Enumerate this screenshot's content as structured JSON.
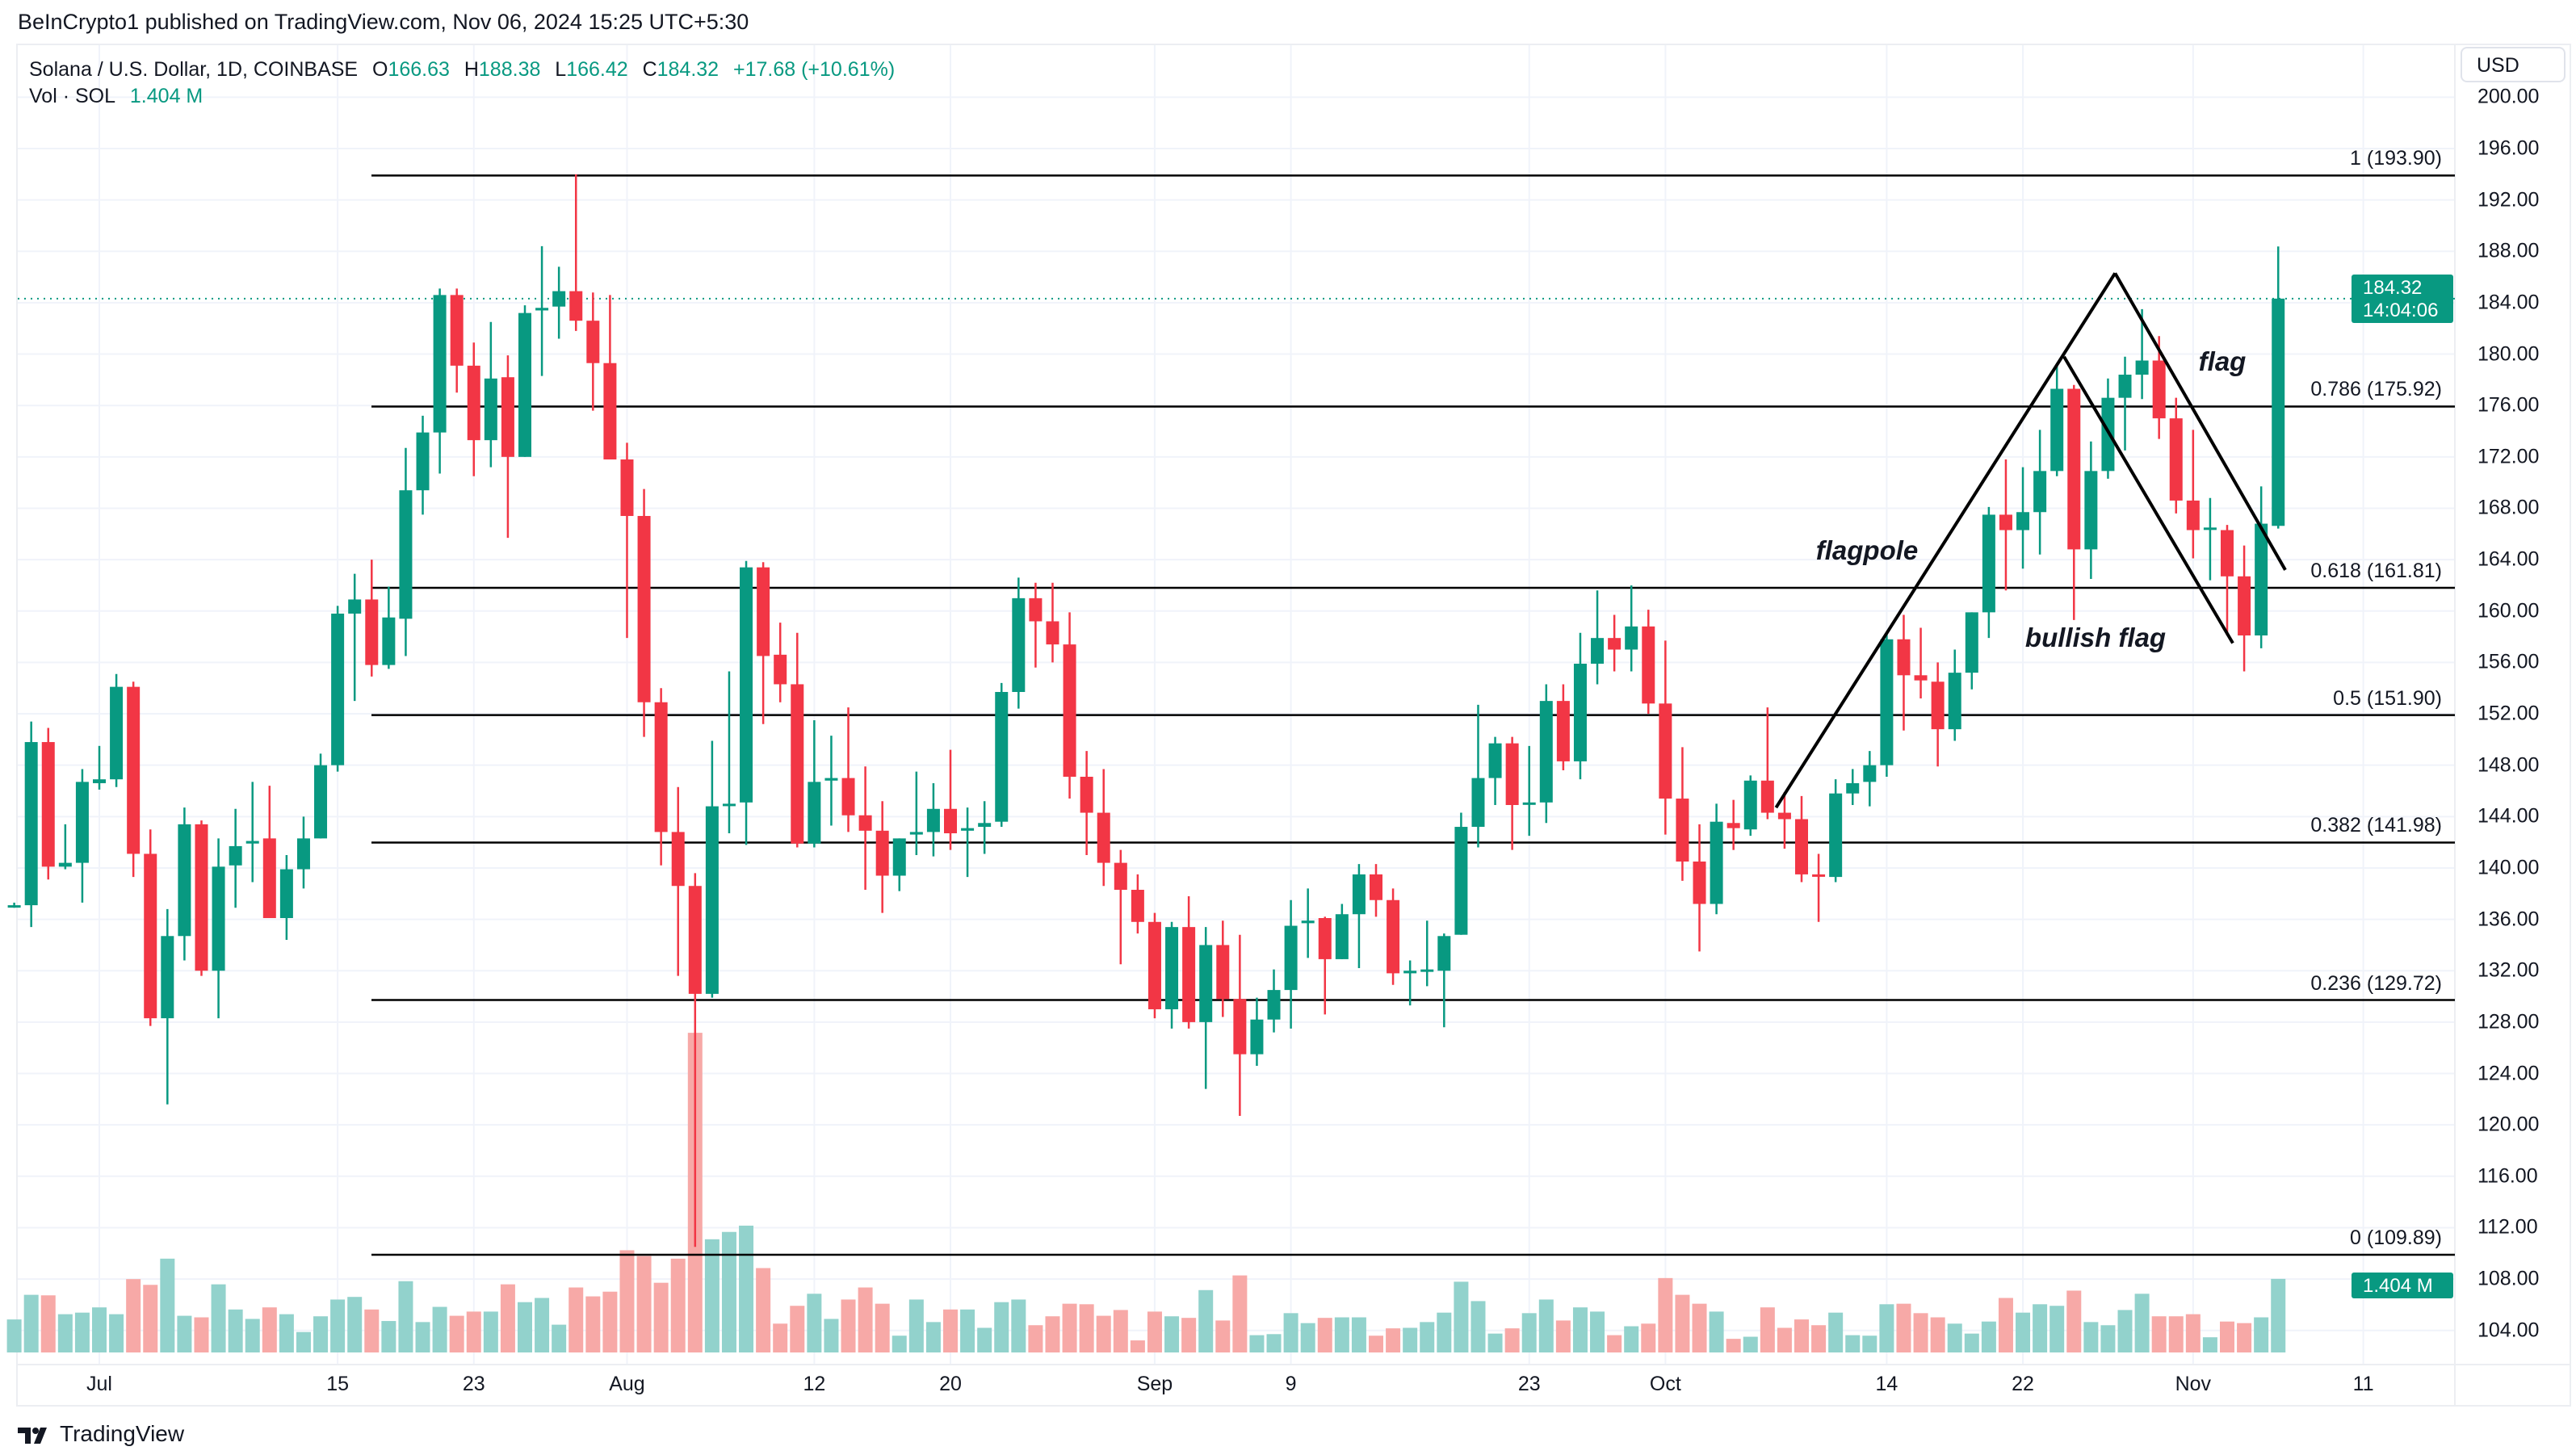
{
  "publish_line": "BeInCrypto1 published on TradingView.com, Nov 06, 2024 15:25 UTC+5:30",
  "legend": {
    "symbol": "Solana / U.S. Dollar, 1D, COINBASE",
    "o_label": "O",
    "o": "166.63",
    "h_label": "H",
    "h": "188.38",
    "l_label": "L",
    "l": "166.42",
    "c_label": "C",
    "c": "184.32",
    "change": "+17.68 (+10.61%)",
    "vol_label": "Vol · SOL",
    "vol": "1.404 M"
  },
  "currency": "USD",
  "price_label": {
    "price": "184.32",
    "countdown": "14:04:06"
  },
  "volume_label": "1.404 M",
  "brand": "TradingView",
  "colors": {
    "up": "#089981",
    "down": "#F23645",
    "vol_up": "#92D2CC",
    "vol_down": "#F7A9A7",
    "fib": "#000000"
  },
  "chart_data": {
    "type": "candlestick",
    "title": "Solana / U.S. Dollar, 1D, COINBASE",
    "ylim": [
      102,
      200
    ],
    "grid": true,
    "y_ticks": [
      "200.00",
      "196.00",
      "192.00",
      "188.00",
      "184.00",
      "180.00",
      "176.00",
      "172.00",
      "168.00",
      "164.00",
      "160.00",
      "156.00",
      "152.00",
      "148.00",
      "144.00",
      "140.00",
      "136.00",
      "132.00",
      "128.00",
      "124.00",
      "120.00",
      "116.00",
      "112.00",
      "108.00",
      "104.00"
    ],
    "x_ticks": [
      {
        "label": "Jul",
        "date": "2024-07-01"
      },
      {
        "label": "15",
        "date": "2024-07-15"
      },
      {
        "label": "23",
        "date": "2024-07-23"
      },
      {
        "label": "Aug",
        "date": "2024-08-01"
      },
      {
        "label": "12",
        "date": "2024-08-12"
      },
      {
        "label": "20",
        "date": "2024-08-20"
      },
      {
        "label": "Sep",
        "date": "2024-09-01"
      },
      {
        "label": "9",
        "date": "2024-09-09"
      },
      {
        "label": "23",
        "date": "2024-09-23"
      },
      {
        "label": "Oct",
        "date": "2024-10-01"
      },
      {
        "label": "14",
        "date": "2024-10-14"
      },
      {
        "label": "22",
        "date": "2024-10-22"
      },
      {
        "label": "Nov",
        "date": "2024-11-01"
      },
      {
        "label": "11",
        "date": "2024-11-11"
      }
    ],
    "fib_levels": [
      {
        "label": "1 (193.90)",
        "price": 193.9
      },
      {
        "label": "0.786 (175.92)",
        "price": 175.92
      },
      {
        "label": "0.618 (161.81)",
        "price": 161.81
      },
      {
        "label": "0.5 (151.90)",
        "price": 151.9
      },
      {
        "label": "0.382 (141.98)",
        "price": 141.98
      },
      {
        "label": "0.236 (129.72)",
        "price": 129.72
      },
      {
        "label": "0 (109.89)",
        "price": 109.89
      }
    ],
    "last_price": 184.32,
    "annotations": {
      "labels": [
        "flagpole",
        "bullish flag",
        "flag"
      ],
      "lines": [
        {
          "from": [
            "2024-10-07T12:00",
            144.7
          ],
          "to": [
            "2024-10-27T10:00",
            186.3
          ]
        },
        {
          "from": [
            "2024-10-24T10:00",
            179.8
          ],
          "to": [
            "2024-11-03T08:00",
            157.5
          ]
        },
        {
          "from": [
            "2024-10-27T10:00",
            186.3
          ],
          "to": [
            "2024-11-06T10:00",
            163.2
          ]
        }
      ]
    },
    "columns": [
      "date",
      "open",
      "high",
      "low",
      "close",
      "volume_M"
    ],
    "candles": [
      [
        "2024-06-26",
        137.0,
        137.3,
        136.9,
        137.1,
        0.63
      ],
      [
        "2024-06-27",
        137.1,
        151.4,
        135.4,
        149.8,
        1.1
      ],
      [
        "2024-06-28",
        149.8,
        150.9,
        139.1,
        140.1,
        1.09
      ],
      [
        "2024-06-29",
        140.1,
        143.4,
        139.9,
        140.4,
        0.73
      ],
      [
        "2024-06-30",
        140.4,
        147.7,
        137.3,
        146.7,
        0.76
      ],
      [
        "2024-07-01",
        146.6,
        149.5,
        146.1,
        146.9,
        0.86
      ],
      [
        "2024-07-02",
        146.9,
        155.1,
        146.3,
        154.1,
        0.73
      ],
      [
        "2024-07-03",
        154.1,
        154.5,
        139.3,
        141.1,
        1.4
      ],
      [
        "2024-07-04",
        141.1,
        143.0,
        127.7,
        128.3,
        1.29
      ],
      [
        "2024-07-05",
        128.3,
        136.8,
        121.6,
        134.7,
        1.79
      ],
      [
        "2024-07-06",
        134.7,
        144.7,
        132.8,
        143.4,
        0.7
      ],
      [
        "2024-07-07",
        143.4,
        143.7,
        131.6,
        132.0,
        0.67
      ],
      [
        "2024-07-08",
        132.0,
        142.3,
        128.3,
        140.1,
        1.3
      ],
      [
        "2024-07-09",
        140.2,
        144.6,
        136.9,
        141.7,
        0.82
      ],
      [
        "2024-07-10",
        141.9,
        146.7,
        138.9,
        142.1,
        0.64
      ],
      [
        "2024-07-11",
        142.3,
        146.4,
        136.1,
        136.1,
        0.86
      ],
      [
        "2024-07-12",
        136.1,
        141.0,
        134.4,
        139.9,
        0.73
      ],
      [
        "2024-07-13",
        139.9,
        144.0,
        138.4,
        142.3,
        0.39
      ],
      [
        "2024-07-14",
        142.3,
        148.9,
        142.3,
        148.0,
        0.69
      ],
      [
        "2024-07-15",
        148.0,
        160.4,
        147.5,
        159.8,
        1.01
      ],
      [
        "2024-07-16",
        159.8,
        162.9,
        153.0,
        160.9,
        1.06
      ],
      [
        "2024-07-17",
        160.9,
        164.0,
        154.9,
        155.8,
        0.82
      ],
      [
        "2024-07-18",
        155.8,
        161.9,
        155.5,
        159.5,
        0.6
      ],
      [
        "2024-07-19",
        159.4,
        172.7,
        156.5,
        169.4,
        1.36
      ],
      [
        "2024-07-20",
        169.4,
        175.2,
        167.5,
        173.9,
        0.58
      ],
      [
        "2024-07-21",
        173.9,
        185.1,
        170.7,
        184.6,
        0.87
      ],
      [
        "2024-07-22",
        184.6,
        185.1,
        177.0,
        179.1,
        0.7
      ],
      [
        "2024-07-23",
        179.1,
        180.9,
        170.5,
        173.3,
        0.78
      ],
      [
        "2024-07-24",
        173.3,
        182.5,
        171.2,
        178.1,
        0.78
      ],
      [
        "2024-07-25",
        178.2,
        179.9,
        165.7,
        172.0,
        1.3
      ],
      [
        "2024-07-26",
        172.0,
        183.8,
        172.0,
        183.2,
        0.96
      ],
      [
        "2024-07-27",
        183.4,
        188.4,
        178.3,
        183.6,
        1.04
      ],
      [
        "2024-07-28",
        183.7,
        186.8,
        181.2,
        184.9,
        0.53
      ],
      [
        "2024-07-29",
        184.9,
        194.0,
        181.8,
        182.6,
        1.24
      ],
      [
        "2024-07-30",
        182.6,
        184.8,
        175.6,
        179.3,
        1.07
      ],
      [
        "2024-07-31",
        179.3,
        184.6,
        171.8,
        171.8,
        1.16
      ],
      [
        "2024-08-01",
        171.8,
        173.1,
        157.9,
        167.4,
        1.95
      ],
      [
        "2024-08-02",
        167.4,
        169.5,
        150.2,
        152.9,
        1.84
      ],
      [
        "2024-08-03",
        152.9,
        154.0,
        140.2,
        142.8,
        1.33
      ],
      [
        "2024-08-04",
        142.8,
        146.3,
        131.6,
        138.6,
        1.79
      ],
      [
        "2024-08-05",
        138.6,
        139.6,
        110.5,
        130.2,
        6.1
      ],
      [
        "2024-08-06",
        130.2,
        149.9,
        129.9,
        144.8,
        2.16
      ],
      [
        "2024-08-07",
        144.9,
        155.3,
        142.7,
        145.0,
        2.3
      ],
      [
        "2024-08-08",
        145.1,
        163.9,
        141.8,
        163.4,
        2.42
      ],
      [
        "2024-08-09",
        163.4,
        163.8,
        151.2,
        156.5,
        1.61
      ],
      [
        "2024-08-10",
        156.6,
        159.1,
        152.9,
        154.3,
        0.55
      ],
      [
        "2024-08-11",
        154.3,
        158.3,
        141.6,
        141.9,
        0.89
      ],
      [
        "2024-08-12",
        141.9,
        151.5,
        141.6,
        146.7,
        1.12
      ],
      [
        "2024-08-13",
        146.8,
        150.3,
        143.3,
        147.0,
        0.64
      ],
      [
        "2024-08-14",
        147.0,
        152.5,
        142.8,
        144.1,
        1.01
      ],
      [
        "2024-08-15",
        144.1,
        147.9,
        138.3,
        142.9,
        1.24
      ],
      [
        "2024-08-16",
        142.9,
        145.2,
        136.5,
        139.4,
        0.93
      ],
      [
        "2024-08-17",
        139.4,
        142.3,
        138.2,
        142.3,
        0.32
      ],
      [
        "2024-08-18",
        142.6,
        147.5,
        141.0,
        142.8,
        1.01
      ],
      [
        "2024-08-19",
        142.8,
        146.6,
        140.9,
        144.6,
        0.58
      ],
      [
        "2024-08-20",
        144.6,
        149.2,
        141.4,
        142.7,
        0.82
      ],
      [
        "2024-08-21",
        142.9,
        144.7,
        139.3,
        143.1,
        0.82
      ],
      [
        "2024-08-22",
        143.2,
        145.2,
        141.1,
        143.5,
        0.47
      ],
      [
        "2024-08-23",
        143.6,
        154.4,
        143.2,
        153.7,
        0.96
      ],
      [
        "2024-08-24",
        153.7,
        162.6,
        152.4,
        161.0,
        1.01
      ],
      [
        "2024-08-25",
        161.0,
        162.2,
        155.6,
        159.2,
        0.52
      ],
      [
        "2024-08-26",
        159.2,
        162.2,
        156.0,
        157.4,
        0.69
      ],
      [
        "2024-08-27",
        157.4,
        159.9,
        145.4,
        147.1,
        0.93
      ],
      [
        "2024-08-28",
        147.1,
        149.1,
        141.0,
        144.3,
        0.92
      ],
      [
        "2024-08-29",
        144.3,
        147.7,
        138.6,
        140.4,
        0.7
      ],
      [
        "2024-08-30",
        140.4,
        141.4,
        132.5,
        138.3,
        0.81
      ],
      [
        "2024-08-31",
        138.3,
        139.5,
        134.9,
        135.8,
        0.23
      ],
      [
        "2024-09-01",
        135.8,
        136.5,
        128.3,
        129.0,
        0.78
      ],
      [
        "2024-09-02",
        129.0,
        135.8,
        127.5,
        135.4,
        0.69
      ],
      [
        "2024-09-03",
        135.4,
        137.8,
        127.5,
        128.0,
        0.66
      ],
      [
        "2024-09-04",
        128.0,
        135.4,
        122.8,
        134.0,
        1.19
      ],
      [
        "2024-09-05",
        134.0,
        135.9,
        128.4,
        129.8,
        0.61
      ],
      [
        "2024-09-06",
        129.8,
        134.8,
        120.7,
        125.5,
        1.47
      ],
      [
        "2024-09-07",
        125.5,
        129.9,
        124.6,
        128.2,
        0.33
      ],
      [
        "2024-09-08",
        128.2,
        132.1,
        127.2,
        130.5,
        0.35
      ],
      [
        "2024-09-09",
        130.5,
        137.5,
        127.5,
        135.5,
        0.75
      ],
      [
        "2024-09-10",
        135.7,
        138.4,
        133.0,
        135.9,
        0.56
      ],
      [
        "2024-09-11",
        136.1,
        136.2,
        128.6,
        132.9,
        0.66
      ],
      [
        "2024-09-12",
        132.9,
        137.2,
        132.9,
        136.4,
        0.67
      ],
      [
        "2024-09-13",
        136.4,
        140.3,
        132.2,
        139.5,
        0.67
      ],
      [
        "2024-09-14",
        139.5,
        140.3,
        136.2,
        137.5,
        0.32
      ],
      [
        "2024-09-15",
        137.5,
        138.4,
        130.9,
        131.8,
        0.46
      ],
      [
        "2024-09-16",
        131.8,
        132.8,
        129.3,
        132.0,
        0.47
      ],
      [
        "2024-09-17",
        132.0,
        135.9,
        130.8,
        132.1,
        0.58
      ],
      [
        "2024-09-18",
        132.0,
        134.9,
        127.6,
        134.7,
        0.76
      ],
      [
        "2024-09-19",
        134.8,
        144.3,
        134.8,
        143.2,
        1.35
      ],
      [
        "2024-09-20",
        143.2,
        152.7,
        141.6,
        147.0,
        0.98
      ],
      [
        "2024-09-21",
        147.0,
        150.2,
        144.9,
        149.7,
        0.36
      ],
      [
        "2024-09-22",
        149.7,
        150.2,
        141.4,
        144.9,
        0.46
      ],
      [
        "2024-09-23",
        145.0,
        149.5,
        142.5,
        145.1,
        0.75
      ],
      [
        "2024-09-24",
        145.1,
        154.3,
        143.5,
        153.0,
        1.01
      ],
      [
        "2024-09-25",
        153.0,
        154.3,
        147.6,
        148.3,
        0.61
      ],
      [
        "2024-09-26",
        148.3,
        158.3,
        146.9,
        155.9,
        0.86
      ],
      [
        "2024-09-27",
        155.9,
        161.6,
        154.3,
        157.9,
        0.78
      ],
      [
        "2024-09-28",
        157.9,
        159.7,
        155.3,
        157.0,
        0.33
      ],
      [
        "2024-09-29",
        157.0,
        162.0,
        155.3,
        158.8,
        0.5
      ],
      [
        "2024-09-30",
        158.8,
        160.1,
        152.0,
        152.8,
        0.55
      ],
      [
        "2024-10-01",
        152.8,
        157.7,
        142.6,
        145.4,
        1.42
      ],
      [
        "2024-10-02",
        145.4,
        149.4,
        139.0,
        140.5,
        1.1
      ],
      [
        "2024-10-03",
        140.5,
        143.4,
        133.5,
        137.2,
        0.93
      ],
      [
        "2024-10-04",
        137.2,
        145.0,
        136.4,
        143.6,
        0.78
      ],
      [
        "2024-10-05",
        143.5,
        145.3,
        141.4,
        143.1,
        0.26
      ],
      [
        "2024-10-06",
        143.0,
        147.2,
        142.5,
        146.8,
        0.3
      ],
      [
        "2024-10-07",
        146.8,
        152.5,
        143.8,
        144.3,
        0.86
      ],
      [
        "2024-10-08",
        144.3,
        145.9,
        141.5,
        143.8,
        0.47
      ],
      [
        "2024-10-09",
        143.8,
        145.6,
        138.9,
        139.5,
        0.63
      ],
      [
        "2024-10-10",
        139.5,
        141.1,
        135.8,
        139.4,
        0.52
      ],
      [
        "2024-10-11",
        139.3,
        146.9,
        138.9,
        145.8,
        0.76
      ],
      [
        "2024-10-12",
        145.8,
        147.7,
        144.9,
        146.6,
        0.33
      ],
      [
        "2024-10-13",
        146.7,
        149.1,
        144.8,
        148.0,
        0.32
      ],
      [
        "2024-10-14",
        148.0,
        158.3,
        147.1,
        157.8,
        0.92
      ],
      [
        "2024-10-15",
        157.8,
        159.7,
        150.7,
        155.0,
        0.93
      ],
      [
        "2024-10-16",
        155.0,
        158.7,
        153.2,
        154.6,
        0.75
      ],
      [
        "2024-10-17",
        154.5,
        156.0,
        147.9,
        150.8,
        0.67
      ],
      [
        "2024-10-18",
        150.8,
        157.0,
        149.9,
        155.2,
        0.55
      ],
      [
        "2024-10-19",
        155.2,
        159.9,
        153.9,
        159.9,
        0.36
      ],
      [
        "2024-10-20",
        159.9,
        168.1,
        157.9,
        167.5,
        0.59
      ],
      [
        "2024-10-21",
        167.5,
        171.8,
        161.6,
        166.3,
        1.04
      ],
      [
        "2024-10-22",
        166.3,
        171.2,
        163.3,
        167.7,
        0.76
      ],
      [
        "2024-10-23",
        167.7,
        174.1,
        164.4,
        170.9,
        0.92
      ],
      [
        "2024-10-24",
        170.9,
        179.3,
        170.5,
        177.3,
        0.89
      ],
      [
        "2024-10-25",
        177.3,
        177.6,
        159.3,
        164.8,
        1.18
      ],
      [
        "2024-10-26",
        164.8,
        173.2,
        162.5,
        170.9,
        0.58
      ],
      [
        "2024-10-27",
        170.9,
        178.1,
        170.3,
        176.6,
        0.52
      ],
      [
        "2024-10-28",
        176.6,
        179.8,
        172.5,
        178.4,
        0.81
      ],
      [
        "2024-10-29",
        178.4,
        183.5,
        176.5,
        179.5,
        1.12
      ],
      [
        "2024-10-30",
        179.5,
        181.4,
        173.4,
        175.0,
        0.69
      ],
      [
        "2024-10-31",
        175.0,
        176.6,
        167.6,
        168.6,
        0.69
      ],
      [
        "2024-11-01",
        168.6,
        174.1,
        164.1,
        166.3,
        0.73
      ],
      [
        "2024-11-02",
        166.4,
        168.8,
        162.4,
        166.5,
        0.29
      ],
      [
        "2024-11-03",
        166.3,
        166.7,
        158.1,
        162.7,
        0.59
      ],
      [
        "2024-11-04",
        162.7,
        165.1,
        155.3,
        158.1,
        0.56
      ],
      [
        "2024-11-05",
        158.1,
        169.7,
        157.1,
        166.8,
        0.67
      ],
      [
        "2024-11-06",
        166.63,
        188.38,
        166.42,
        184.32,
        1.404
      ]
    ]
  }
}
